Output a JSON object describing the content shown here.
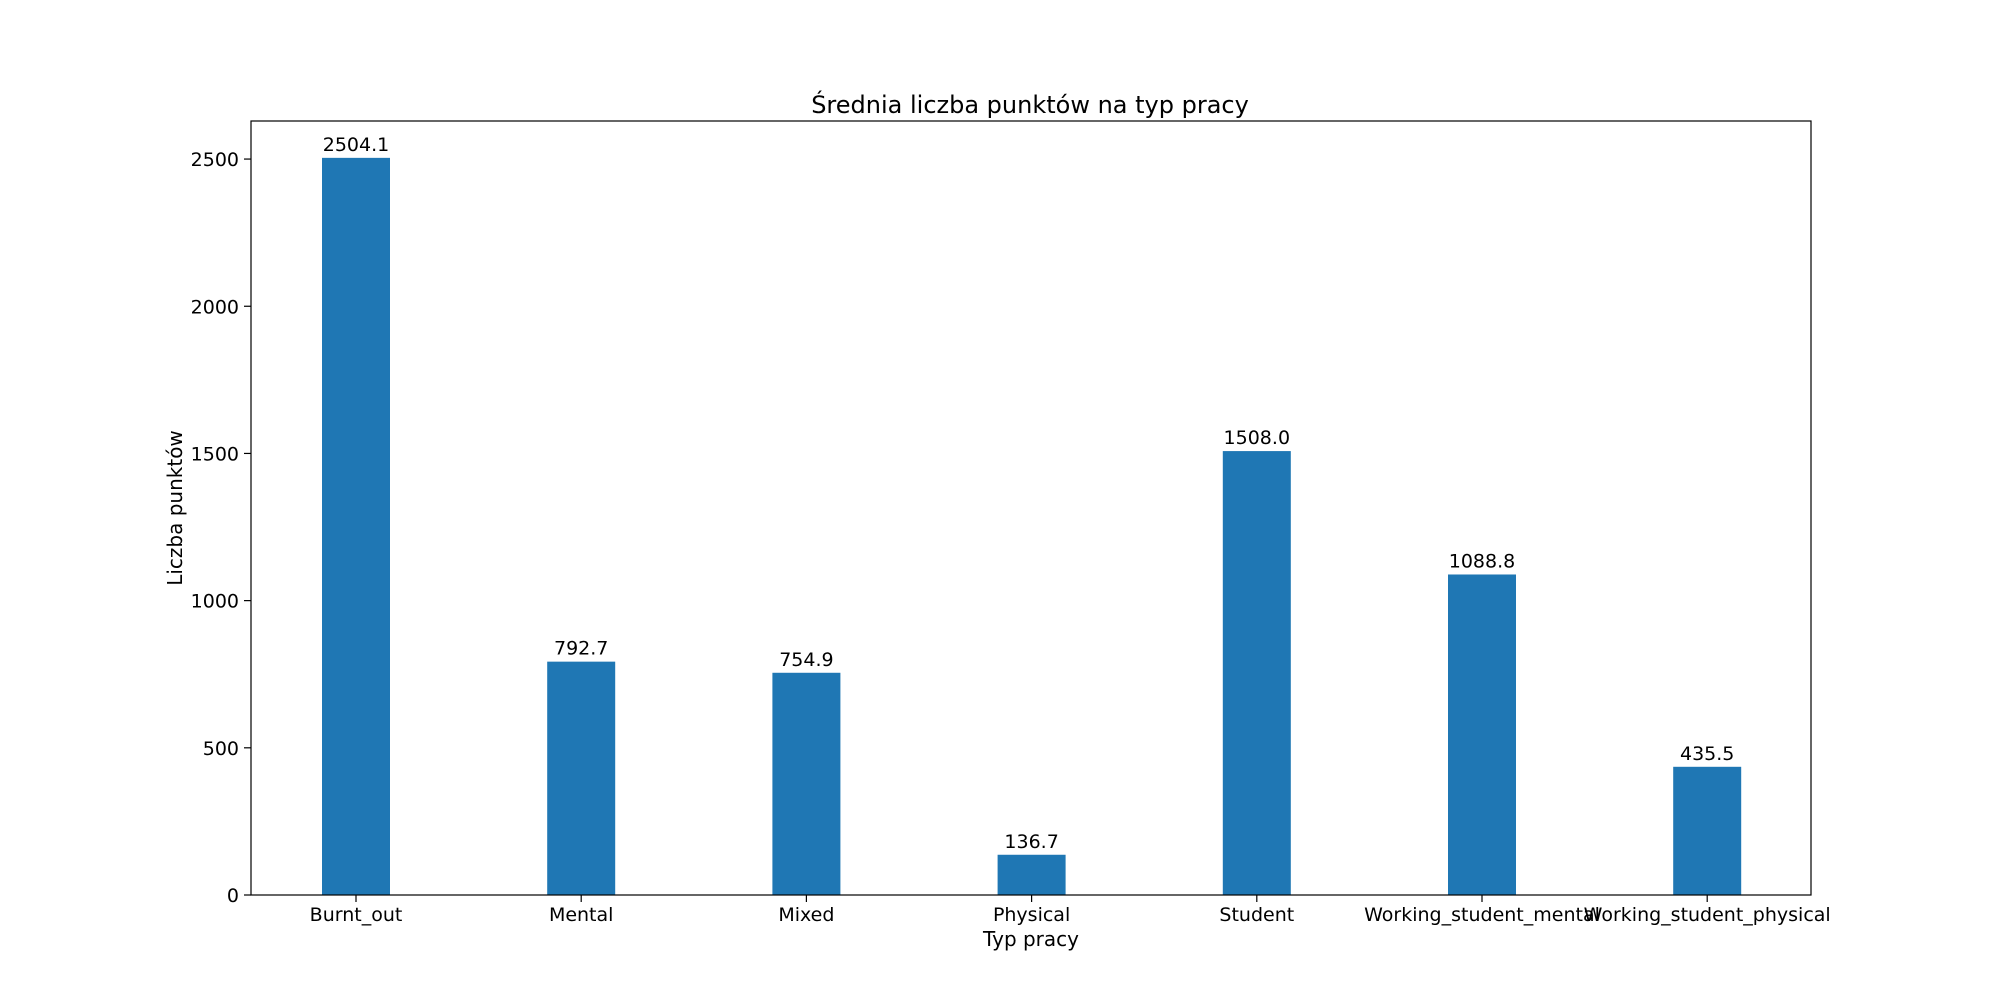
{
  "chart_data": {
    "type": "bar",
    "title": "Średnia liczba punktów na typ pracy",
    "xlabel": "Typ pracy",
    "ylabel": "Liczba punktów",
    "categories": [
      "Burnt_out",
      "Mental",
      "Mixed",
      "Physical",
      "Student",
      "Working_student_mental",
      "Working_student_physical"
    ],
    "values": [
      2504.1,
      792.7,
      754.9,
      136.7,
      1508.0,
      1088.8,
      435.5
    ],
    "data_labels": [
      "2504.1",
      "792.7",
      "754.9",
      "136.7",
      "1508.0",
      "1088.8",
      "435.5"
    ],
    "y_ticks": [
      0,
      500,
      1000,
      1500,
      2000,
      2500
    ],
    "ylim": [
      0,
      2629.3
    ],
    "bar_color": "#1f77b4",
    "grid": false,
    "legend": false
  }
}
